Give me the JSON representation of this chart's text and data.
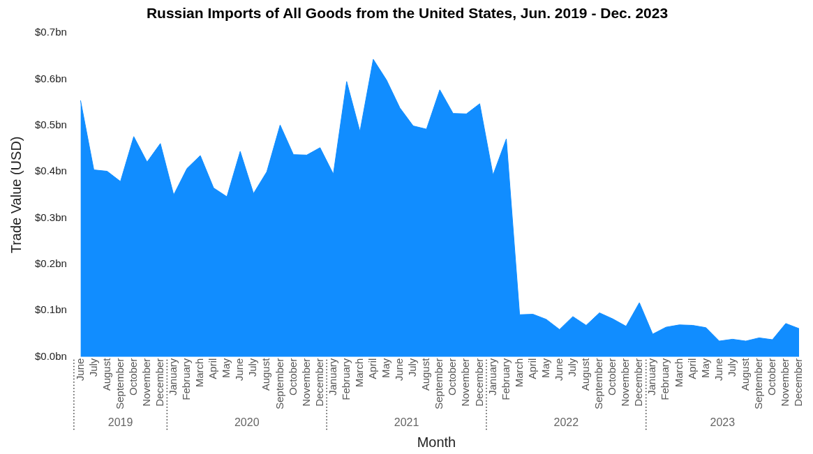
{
  "chart_data": {
    "type": "area",
    "title": "Russian Imports of All Goods from the United States, Jun. 2019 - Dec. 2023",
    "xlabel": "Month",
    "ylabel": "Trade Value (USD)",
    "x": [
      "2019-06",
      "2019-07",
      "2019-08",
      "2019-09",
      "2019-10",
      "2019-11",
      "2019-12",
      "2020-01",
      "2020-02",
      "2020-03",
      "2020-04",
      "2020-05",
      "2020-06",
      "2020-07",
      "2020-08",
      "2020-09",
      "2020-10",
      "2020-11",
      "2020-12",
      "2021-01",
      "2021-02",
      "2021-03",
      "2021-04",
      "2021-05",
      "2021-06",
      "2021-07",
      "2021-08",
      "2021-09",
      "2021-10",
      "2021-11",
      "2021-12",
      "2022-01",
      "2022-02",
      "2022-03",
      "2022-04",
      "2022-05",
      "2022-06",
      "2022-07",
      "2022-08",
      "2022-09",
      "2022-10",
      "2022-11",
      "2022-12",
      "2023-01",
      "2023-02",
      "2023-03",
      "2023-04",
      "2023-05",
      "2023-06",
      "2023-07",
      "2023-08",
      "2023-09",
      "2023-10",
      "2023-11",
      "2023-12"
    ],
    "series": [
      {
        "color": "#118dff",
        "values": [
          0.554,
          0.404,
          0.401,
          0.379,
          0.476,
          0.421,
          0.461,
          0.35,
          0.407,
          0.435,
          0.365,
          0.346,
          0.444,
          0.353,
          0.4,
          0.501,
          0.437,
          0.436,
          0.452,
          0.395,
          0.595,
          0.487,
          0.643,
          0.598,
          0.538,
          0.499,
          0.492,
          0.577,
          0.526,
          0.525,
          0.547,
          0.393,
          0.471,
          0.091,
          0.092,
          0.081,
          0.059,
          0.087,
          0.068,
          0.095,
          0.082,
          0.066,
          0.117,
          0.049,
          0.064,
          0.069,
          0.068,
          0.063,
          0.034,
          0.038,
          0.034,
          0.041,
          0.037,
          0.072,
          0.061
        ]
      }
    ],
    "xlim": [
      "2019-06",
      "2023-12"
    ],
    "xticks": [
      {
        "value": "2019-06",
        "label": "June"
      },
      {
        "value": "2019-07",
        "label": "July"
      },
      {
        "value": "2019-08",
        "label": "August"
      },
      {
        "value": "2019-09",
        "label": "September"
      },
      {
        "value": "2019-10",
        "label": "October"
      },
      {
        "value": "2019-11",
        "label": "November"
      },
      {
        "value": "2019-12",
        "label": "December"
      },
      {
        "value": "2020-01",
        "label": "January"
      },
      {
        "value": "2020-02",
        "label": "February"
      },
      {
        "value": "2020-03",
        "label": "March"
      },
      {
        "value": "2020-04",
        "label": "April"
      },
      {
        "value": "2020-05",
        "label": "May"
      },
      {
        "value": "2020-06",
        "label": "June"
      },
      {
        "value": "2020-07",
        "label": "July"
      },
      {
        "value": "2020-08",
        "label": "August"
      },
      {
        "value": "2020-09",
        "label": "September"
      },
      {
        "value": "2020-10",
        "label": "October"
      },
      {
        "value": "2020-11",
        "label": "November"
      },
      {
        "value": "2020-12",
        "label": "December"
      },
      {
        "value": "2021-01",
        "label": "January"
      },
      {
        "value": "2021-02",
        "label": "February"
      },
      {
        "value": "2021-03",
        "label": "March"
      },
      {
        "value": "2021-04",
        "label": "April"
      },
      {
        "value": "2021-05",
        "label": "May"
      },
      {
        "value": "2021-06",
        "label": "June"
      },
      {
        "value": "2021-07",
        "label": "July"
      },
      {
        "value": "2021-08",
        "label": "August"
      },
      {
        "value": "2021-09",
        "label": "September"
      },
      {
        "value": "2021-10",
        "label": "October"
      },
      {
        "value": "2021-11",
        "label": "November"
      },
      {
        "value": "2021-12",
        "label": "December"
      },
      {
        "value": "2022-01",
        "label": "January"
      },
      {
        "value": "2022-02",
        "label": "February"
      },
      {
        "value": "2022-03",
        "label": "March"
      },
      {
        "value": "2022-04",
        "label": "April"
      },
      {
        "value": "2022-05",
        "label": "May"
      },
      {
        "value": "2022-06",
        "label": "June"
      },
      {
        "value": "2022-07",
        "label": "July"
      },
      {
        "value": "2022-08",
        "label": "August"
      },
      {
        "value": "2022-09",
        "label": "September"
      },
      {
        "value": "2022-10",
        "label": "October"
      },
      {
        "value": "2022-11",
        "label": "November"
      },
      {
        "value": "2022-12",
        "label": "December"
      },
      {
        "value": "2023-01",
        "label": "January"
      },
      {
        "value": "2023-02",
        "label": "February"
      },
      {
        "value": "2023-03",
        "label": "March"
      },
      {
        "value": "2023-04",
        "label": "April"
      },
      {
        "value": "2023-05",
        "label": "May"
      },
      {
        "value": "2023-06",
        "label": "June"
      },
      {
        "value": "2023-07",
        "label": "July"
      },
      {
        "value": "2023-08",
        "label": "August"
      },
      {
        "value": "2023-09",
        "label": "September"
      },
      {
        "value": "2023-10",
        "label": "October"
      },
      {
        "value": "2023-11",
        "label": "November"
      },
      {
        "value": "2023-12",
        "label": "December"
      }
    ],
    "ylim": [
      0,
      0.7
    ],
    "yticks": [
      {
        "value": 0,
        "label": "$0.0bn"
      },
      {
        "value": 0.1,
        "label": "$0.1bn"
      },
      {
        "value": 0.2,
        "label": "$0.2bn"
      },
      {
        "value": 0.3,
        "label": "$0.3bn"
      },
      {
        "value": 0.4,
        "label": "$0.4bn"
      },
      {
        "value": 0.5,
        "label": "$0.5bn"
      },
      {
        "value": 0.6,
        "label": "$0.6bn"
      },
      {
        "value": 0.7,
        "label": "$0.7bn"
      }
    ],
    "annotations": [
      "2019",
      "2020",
      "2021",
      "2022",
      "2023"
    ],
    "grid": false,
    "legend": false
  }
}
